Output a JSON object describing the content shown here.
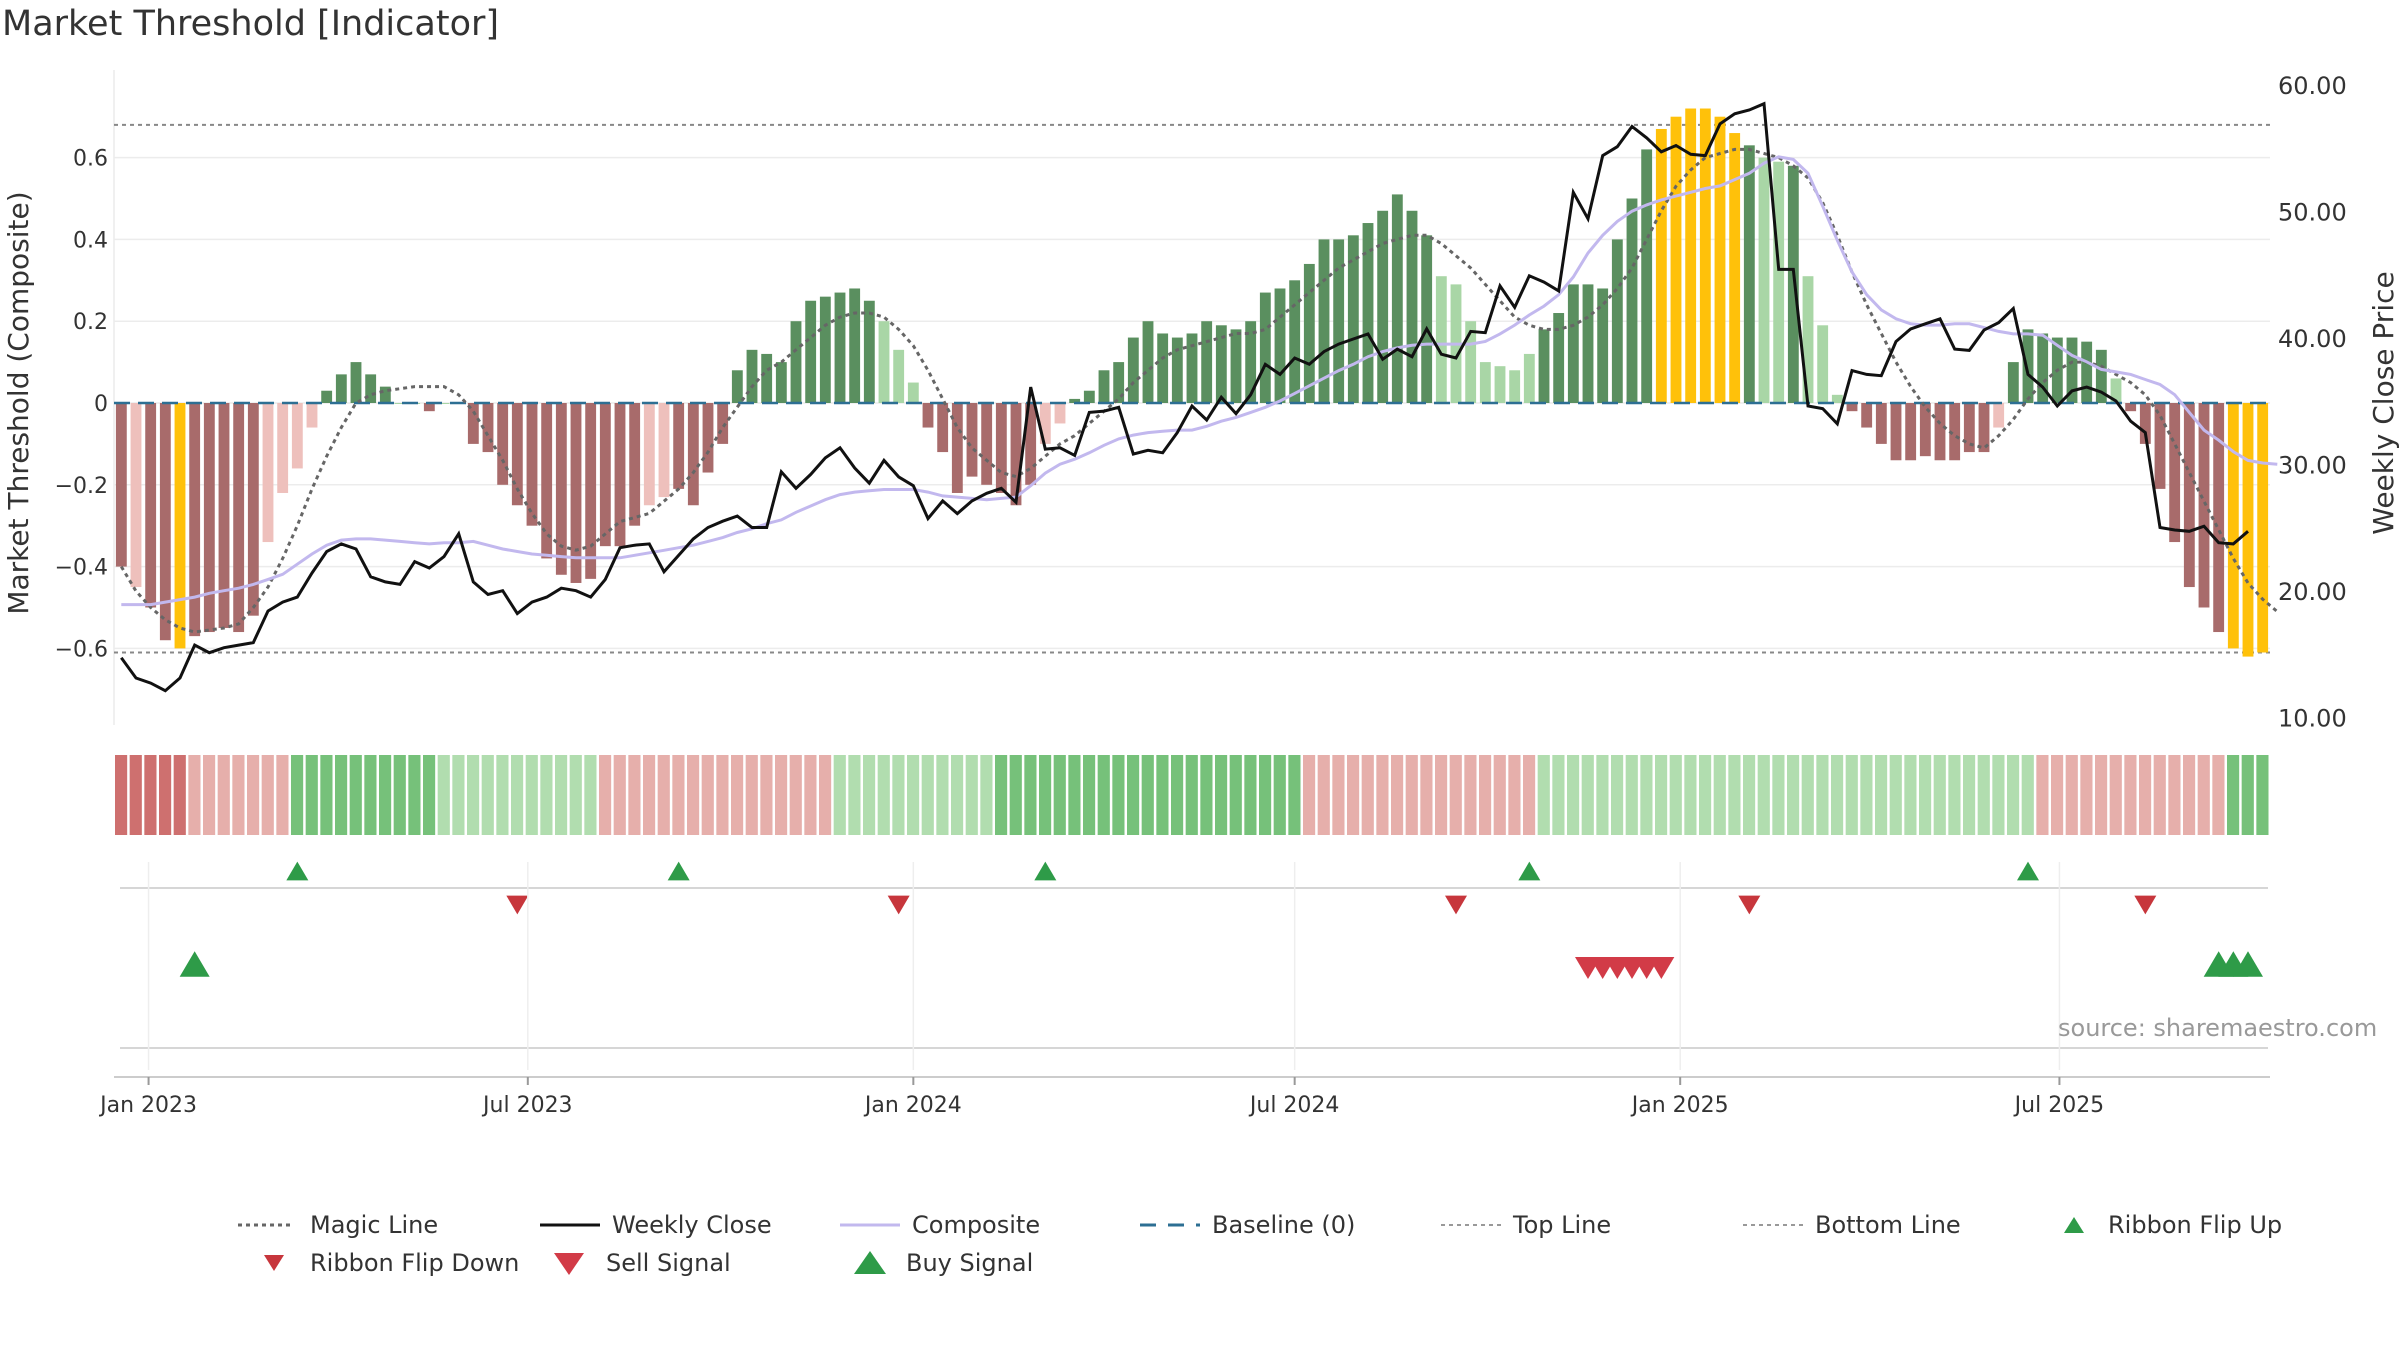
{
  "title": "Market Threshold [Indicator]",
  "source": "source: sharemaestro.com",
  "colors": {
    "dark_red": "#a86b6b",
    "light_red": "#eec0bc",
    "dark_green": "#5a8f5f",
    "light_green": "#a9d6a6",
    "yellow": "#ffc10a",
    "close_line": "#111111",
    "composite_line": "#c2b8ee",
    "magic_line": "#666666",
    "baseline": "#2d6f93",
    "grid": "#ececec",
    "ribbon_green": "#5cb862",
    "ribbon_red": "#c9615f",
    "buy_green": "#2e9b48",
    "sell_red": "#d23b47"
  },
  "chart_data": {
    "type": "bar",
    "title": "Market Threshold [Indicator]",
    "ylabel": "Market Threshold (Composite)",
    "ylabel_right": "Weekly Close Price",
    "ylim": [
      -0.78,
      0.78
    ],
    "ylim_right": [
      10,
      60
    ],
    "yticks_left": [
      "0.6",
      "0.4",
      "0.2",
      "0",
      "−0.2",
      "−0.4",
      "−0.6"
    ],
    "yticks_left_values": [
      0.6,
      0.4,
      0.2,
      0,
      -0.2,
      -0.4,
      -0.6
    ],
    "yticks_right": [
      "60.00",
      "50.00",
      "40.00",
      "30.00",
      "20.00",
      "10.00"
    ],
    "yticks_right_values": [
      60,
      50,
      40,
      30,
      20,
      10
    ],
    "xticks": [
      "Jan 2023",
      "Jul 2023",
      "Jan 2024",
      "Jul 2024",
      "Jan 2025",
      "Jul 2025"
    ],
    "xticks_dates": [
      "2023-01-01",
      "2023-07-01",
      "2024-01-01",
      "2024-07-01",
      "2025-01-01",
      "2025-07-01"
    ],
    "x_start": "2022-12-19",
    "x_step_days": 7,
    "top_line": 0.68,
    "bottom_line": -0.61,
    "composite": [
      -0.4,
      -0.45,
      -0.5,
      -0.58,
      -0.6,
      -0.57,
      -0.56,
      -0.55,
      -0.56,
      -0.52,
      -0.34,
      -0.22,
      -0.16,
      -0.06,
      0.03,
      0.07,
      0.1,
      0.07,
      0.04,
      0.0,
      0.0,
      -0.02,
      0.0,
      0.0,
      -0.1,
      -0.12,
      -0.2,
      -0.25,
      -0.3,
      -0.38,
      -0.42,
      -0.44,
      -0.43,
      -0.35,
      -0.35,
      -0.3,
      -0.25,
      -0.23,
      -0.21,
      -0.25,
      -0.17,
      -0.1,
      0.08,
      0.13,
      0.12,
      0.1,
      0.2,
      0.25,
      0.26,
      0.27,
      0.28,
      0.25,
      0.2,
      0.13,
      0.05,
      -0.06,
      -0.12,
      -0.22,
      -0.18,
      -0.2,
      -0.22,
      -0.25,
      -0.2,
      -0.1,
      -0.05,
      0.01,
      0.03,
      0.08,
      0.1,
      0.16,
      0.2,
      0.17,
      0.16,
      0.17,
      0.2,
      0.19,
      0.18,
      0.2,
      0.27,
      0.28,
      0.3,
      0.34,
      0.4,
      0.4,
      0.41,
      0.44,
      0.47,
      0.51,
      0.47,
      0.41,
      0.31,
      0.29,
      0.2,
      0.1,
      0.09,
      0.08,
      0.12,
      0.18,
      0.22,
      0.29,
      0.29,
      0.28,
      0.4,
      0.5,
      0.62,
      0.67,
      0.7,
      0.72,
      0.72,
      0.7,
      0.66,
      0.63,
      0.6,
      0.59,
      0.58,
      0.31,
      0.19,
      0.02,
      -0.02,
      -0.06,
      -0.1,
      -0.14,
      -0.14,
      -0.13,
      -0.14,
      -0.14,
      -0.12,
      -0.12,
      -0.06,
      0.1,
      0.18,
      0.17,
      0.16,
      0.16,
      0.15,
      0.13,
      0.06,
      -0.02,
      -0.1,
      -0.21,
      -0.34,
      -0.45,
      -0.5,
      -0.56,
      -0.6,
      -0.62,
      -0.61
    ],
    "weekly_close": [
      14.8,
      13.2,
      12.8,
      12.2,
      13.2,
      15.8,
      15.2,
      15.6,
      15.8,
      16,
      18.5,
      19.2,
      19.6,
      21.5,
      23.2,
      23.8,
      23.4,
      21.2,
      20.8,
      20.6,
      22.4,
      21.9,
      22.8,
      24.6,
      20.8,
      19.8,
      20.1,
      18.3,
      19.2,
      19.6,
      20.3,
      20.1,
      19.6,
      21,
      23.5,
      23.7,
      23.8,
      21.6,
      22.9,
      24.2,
      25.1,
      25.6,
      26,
      25.1,
      25.1,
      29.5,
      28.2,
      29.3,
      30.6,
      31.4,
      29.8,
      28.6,
      30.4,
      29.1,
      28.4,
      25.8,
      27.2,
      26.2,
      27.2,
      27.8,
      28.2,
      27.1,
      36.2,
      31.3,
      31.4,
      30.8,
      34.2,
      34.3,
      34.6,
      30.9,
      31.2,
      31,
      32.6,
      34.7,
      33.6,
      35.4,
      34.1,
      35.6,
      38,
      37.2,
      38.5,
      38,
      39,
      39.6,
      40,
      40.4,
      38.4,
      39.2,
      38.6,
      40.8,
      38.8,
      38.5,
      40.6,
      40.5,
      44.2,
      42.5,
      45,
      44.5,
      43.8,
      51.6,
      49.5,
      54.5,
      55.2,
      56.8,
      55.9,
      54.8,
      55.3,
      54.6,
      54.5,
      57,
      57.8,
      58.1,
      58.6,
      45.5,
      45.5,
      34.7,
      34.5,
      33.3,
      37.5,
      37.2,
      37.1,
      39.8,
      40.8,
      41.2,
      41.6,
      39.2,
      39.1,
      40.7,
      41.3,
      42.4,
      37.2,
      36.2,
      34.7,
      35.9,
      36.2,
      35.8,
      35.1,
      33.5,
      32.6,
      25.1,
      24.9,
      24.8,
      25.2,
      23.9,
      23.8,
      24.8
    ],
    "magic_line": [
      -0.4,
      -0.46,
      -0.5,
      -0.53,
      -0.55,
      -0.56,
      -0.555,
      -0.55,
      -0.54,
      -0.5,
      -0.45,
      -0.38,
      -0.3,
      -0.21,
      -0.13,
      -0.06,
      0,
      0.02,
      0.03,
      0.035,
      0.04,
      0.04,
      0.04,
      0.02,
      -0.02,
      -0.08,
      -0.14,
      -0.21,
      -0.27,
      -0.32,
      -0.35,
      -0.36,
      -0.35,
      -0.32,
      -0.29,
      -0.28,
      -0.27,
      -0.24,
      -0.21,
      -0.17,
      -0.12,
      -0.06,
      -0.01,
      0.04,
      0.08,
      0.1,
      0.13,
      0.16,
      0.19,
      0.21,
      0.22,
      0.22,
      0.21,
      0.18,
      0.14,
      0.08,
      0.01,
      -0.06,
      -0.11,
      -0.14,
      -0.17,
      -0.18,
      -0.16,
      -0.13,
      -0.1,
      -0.08,
      -0.05,
      -0.02,
      0.01,
      0.05,
      0.08,
      0.11,
      0.13,
      0.14,
      0.15,
      0.16,
      0.17,
      0.17,
      0.18,
      0.21,
      0.24,
      0.27,
      0.3,
      0.33,
      0.35,
      0.37,
      0.39,
      0.4,
      0.41,
      0.41,
      0.39,
      0.36,
      0.33,
      0.29,
      0.25,
      0.21,
      0.19,
      0.18,
      0.18,
      0.19,
      0.21,
      0.24,
      0.28,
      0.33,
      0.4,
      0.47,
      0.53,
      0.57,
      0.6,
      0.61,
      0.62,
      0.62,
      0.61,
      0.6,
      0.58,
      0.55,
      0.49,
      0.41,
      0.32,
      0.24,
      0.17,
      0.1,
      0.04,
      -0.01,
      -0.05,
      -0.08,
      -0.1,
      -0.11,
      -0.08,
      -0.04,
      0.01,
      0.05,
      0.08,
      0.1,
      0.1,
      0.09,
      0.07,
      0.05,
      0.02,
      -0.03,
      -0.1,
      -0.17,
      -0.24,
      -0.31,
      -0.38,
      -0.44,
      -0.48,
      -0.51
    ],
    "composite_line": [
      19,
      19,
      19,
      19.2,
      19.4,
      19.6,
      19.9,
      20.1,
      20.3,
      20.6,
      21,
      21.4,
      22.2,
      23,
      23.7,
      24.1,
      24.2,
      24.2,
      24.1,
      24,
      23.9,
      23.8,
      23.9,
      23.9,
      24,
      23.7,
      23.4,
      23.2,
      23,
      22.9,
      22.8,
      22.7,
      22.7,
      22.7,
      22.7,
      22.9,
      23.1,
      23.3,
      23.5,
      23.7,
      24,
      24.3,
      24.7,
      25,
      25.4,
      25.7,
      26.3,
      26.8,
      27.3,
      27.7,
      27.9,
      28,
      28.1,
      28.1,
      28.1,
      27.9,
      27.6,
      27.5,
      27.4,
      27.3,
      27.4,
      27.5,
      28.4,
      29.4,
      30.1,
      30.5,
      31,
      31.6,
      32.1,
      32.4,
      32.6,
      32.7,
      32.8,
      32.8,
      33.1,
      33.5,
      33.8,
      34.2,
      34.6,
      35.1,
      35.7,
      36.3,
      36.9,
      37.5,
      38,
      38.6,
      39,
      39.3,
      39.5,
      39.6,
      39.6,
      39.6,
      39.6,
      39.8,
      40.4,
      41.1,
      41.9,
      42.6,
      43.5,
      44.9,
      46.8,
      48.2,
      49.3,
      50.1,
      50.6,
      51,
      51.3,
      51.6,
      51.9,
      52.1,
      52.6,
      53.1,
      53.9,
      54.4,
      54.2,
      53.1,
      50.5,
      47.8,
      45.3,
      43.5,
      42.3,
      41.6,
      41.2,
      41.1,
      41.1,
      41.2,
      41.2,
      40.9,
      40.6,
      40.4,
      40.4,
      40.3,
      39.5,
      38.7,
      38.2,
      37.6,
      37.4,
      37.2,
      36.8,
      36.4,
      35.6,
      34.2,
      32.8,
      32,
      31.1,
      30.4,
      30.2,
      30.1
    ],
    "ribbon": "RRRRRrrrrrrrGGGGGGGGGGgggggggggggrrrrrrrrrrrrrrrrgggggggggggGGGGGGGGGGGGGGGGGGGGGrrrrrrrrrrrrrrrrggggggggggggggggggggggggggggggggggrrrrrrrrrrrrrGGGGGGGGGGGGGGGGGGGGRRRRRRRRRRRRRRRRRRRrrrrrrrrrrrrrrggggggggggrrrrRRRRRRRRRRR",
    "ribbon_flip_up_dates": [
      "2023-03-13",
      "2023-09-11",
      "2024-03-04",
      "2024-10-21",
      "2025-06-16"
    ],
    "ribbon_flip_down_dates": [
      "2023-06-26",
      "2023-12-25",
      "2024-09-16",
      "2025-02-03",
      "2025-08-11"
    ],
    "buy_signal_dates": [
      "2023-01-23",
      "2025-09-15",
      "2025-09-22",
      "2025-09-29"
    ],
    "sell_signal_dates": [
      "2024-11-18",
      "2024-11-25",
      "2024-12-02",
      "2024-12-09",
      "2024-12-16",
      "2024-12-23"
    ],
    "legend": [
      {
        "label": "Magic Line",
        "kind": "dotted"
      },
      {
        "label": "Weekly Close",
        "kind": "solid"
      },
      {
        "label": "Composite",
        "kind": "light"
      },
      {
        "label": "Baseline (0)",
        "kind": "dashed"
      },
      {
        "label": "Top Line",
        "kind": "gray-dotted"
      },
      {
        "label": "Bottom Line",
        "kind": "gray-dotted"
      },
      {
        "label": "Ribbon Flip Up",
        "kind": "up-green"
      },
      {
        "label": "Ribbon Flip Down",
        "kind": "down-darkred"
      },
      {
        "label": "Sell Signal",
        "kind": "down-red"
      },
      {
        "label": "Buy Signal",
        "kind": "up-bright"
      }
    ]
  }
}
